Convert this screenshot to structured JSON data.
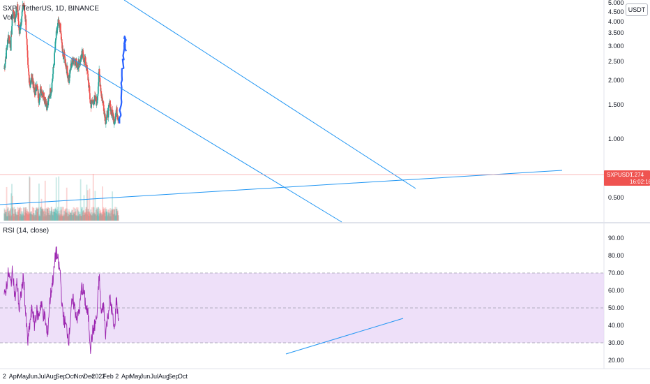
{
  "legend": {
    "title": "SXP / TetherUS, 1D, BINANCE",
    "volume": "Vol",
    "rsi": "RSI (14, close)"
  },
  "currency_button": "USDT",
  "price_badge": {
    "symbol": "SXPUSDT",
    "price": "1.274",
    "countdown": "16:02:16"
  },
  "colors": {
    "up": "#26a69a",
    "down": "#ef5350",
    "projection": "#2962ff",
    "trendline": "#2196f3",
    "rsi_line": "#9c27b0",
    "rsi_band": "#e8d5f7",
    "badge": "#ef5350"
  },
  "chart_data": [
    {
      "type": "candlestick",
      "title": "SXP / TetherUS, 1D, BINANCE",
      "y_axis": {
        "scale": "log",
        "range": [
          0.42,
          5.0
        ],
        "tick_labels": [
          "5.000",
          "4.500",
          "4.000",
          "3.500",
          "3.000",
          "2.500",
          "2.000",
          "1.500",
          "1.000",
          "0.500"
        ]
      },
      "x_axis": {
        "tick_labels": [
          "2",
          "Apr",
          "May",
          "Jun",
          "Jul",
          "Aug",
          "Sep",
          "Oct",
          "Nov",
          "Dec",
          "2022",
          "Feb",
          "2",
          "Apr",
          "May",
          "Jun",
          "Jul",
          "Aug",
          "Sep",
          "Oct"
        ]
      },
      "series": [
        {
          "name": "SXPUSDT",
          "kind": "price_path_estimate",
          "points": [
            [
              "2021-03-01",
              2.3
            ],
            [
              "2021-03-08",
              2.8
            ],
            [
              "2021-03-15",
              3.4
            ],
            [
              "2021-03-22",
              3.0
            ],
            [
              "2021-03-29",
              4.6
            ],
            [
              "2021-04-05",
              4.1
            ],
            [
              "2021-04-12",
              4.9
            ],
            [
              "2021-04-19",
              3.5
            ],
            [
              "2021-04-26",
              4.2
            ],
            [
              "2021-05-03",
              5.0
            ],
            [
              "2021-05-10",
              4.0
            ],
            [
              "2021-05-17",
              2.3
            ],
            [
              "2021-05-24",
              1.9
            ],
            [
              "2021-05-31",
              2.1
            ],
            [
              "2021-06-07",
              1.7
            ],
            [
              "2021-06-14",
              1.9
            ],
            [
              "2021-06-21",
              1.6
            ],
            [
              "2021-06-28",
              1.8
            ],
            [
              "2021-07-05",
              1.7
            ],
            [
              "2021-07-12",
              1.6
            ],
            [
              "2021-07-19",
              1.45
            ],
            [
              "2021-07-26",
              1.7
            ],
            [
              "2021-08-02",
              1.85
            ],
            [
              "2021-08-09",
              2.4
            ],
            [
              "2021-08-16",
              3.3
            ],
            [
              "2021-08-23",
              3.9
            ],
            [
              "2021-08-30",
              3.7
            ],
            [
              "2021-09-06",
              2.8
            ],
            [
              "2021-09-13",
              2.6
            ],
            [
              "2021-09-20",
              2.3
            ],
            [
              "2021-09-27",
              2.0
            ],
            [
              "2021-10-04",
              2.4
            ],
            [
              "2021-10-11",
              2.6
            ],
            [
              "2021-10-18",
              2.5
            ],
            [
              "2021-10-25",
              2.4
            ],
            [
              "2021-11-01",
              2.5
            ],
            [
              "2021-11-08",
              2.7
            ],
            [
              "2021-11-15",
              2.6
            ],
            [
              "2021-11-22",
              2.4
            ],
            [
              "2021-11-29",
              2.0
            ],
            [
              "2021-12-06",
              1.5
            ],
            [
              "2021-12-13",
              1.55
            ],
            [
              "2021-12-20",
              1.6
            ],
            [
              "2021-12-27",
              1.55
            ],
            [
              "2022-01-03",
              2.2
            ],
            [
              "2022-01-10",
              1.7
            ],
            [
              "2022-01-17",
              1.5
            ],
            [
              "2022-01-24",
              1.25
            ],
            [
              "2022-01-31",
              1.35
            ],
            [
              "2022-02-07",
              1.5
            ],
            [
              "2022-02-14",
              1.35
            ],
            [
              "2022-02-21",
              1.25
            ],
            [
              "2022-02-28",
              1.4
            ],
            [
              "2022-03-07",
              1.274
            ]
          ]
        },
        {
          "name": "Projection",
          "kind": "hand_drawn_path",
          "points": [
            [
              "2022-03-10",
              1.2
            ],
            [
              "2022-03-14",
              1.5
            ],
            [
              "2022-03-18",
              1.9
            ],
            [
              "2022-03-22",
              2.5
            ],
            [
              "2022-03-25",
              3.1
            ],
            [
              "2022-03-28",
              3.35
            ],
            [
              "2022-03-31",
              2.8
            ]
          ]
        },
        {
          "name": "Volume",
          "kind": "histogram_relative"
        }
      ],
      "annotations": [
        "upper descending channel line",
        "lower descending channel line",
        "ascending support line"
      ]
    },
    {
      "type": "line",
      "title": "RSI (14, close)",
      "y_axis": {
        "range": [
          18,
          94
        ],
        "tick_labels": [
          "90.00",
          "80.00",
          "70.00",
          "60.00",
          "50.00",
          "40.00",
          "30.00",
          "20.00"
        ]
      },
      "band": [
        30,
        70
      ],
      "series": [
        {
          "name": "RSI",
          "points": [
            [
              "2021-03-01",
              55
            ],
            [
              "2021-03-15",
              70
            ],
            [
              "2021-03-22",
              64
            ],
            [
              "2021-03-29",
              72
            ],
            [
              "2021-04-05",
              55
            ],
            [
              "2021-04-12",
              65
            ],
            [
              "2021-04-19",
              48
            ],
            [
              "2021-04-26",
              60
            ],
            [
              "2021-05-03",
              68
            ],
            [
              "2021-05-10",
              45
            ],
            [
              "2021-05-17",
              30
            ],
            [
              "2021-05-24",
              42
            ],
            [
              "2021-05-31",
              50
            ],
            [
              "2021-06-07",
              40
            ],
            [
              "2021-06-14",
              48
            ],
            [
              "2021-06-21",
              45
            ],
            [
              "2021-06-28",
              53
            ],
            [
              "2021-07-05",
              47
            ],
            [
              "2021-07-12",
              44
            ],
            [
              "2021-07-19",
              33
            ],
            [
              "2021-07-26",
              52
            ],
            [
              "2021-08-02",
              62
            ],
            [
              "2021-08-09",
              70
            ],
            [
              "2021-08-16",
              83
            ],
            [
              "2021-08-23",
              76
            ],
            [
              "2021-08-30",
              70
            ],
            [
              "2021-09-06",
              48
            ],
            [
              "2021-09-13",
              42
            ],
            [
              "2021-09-20",
              38
            ],
            [
              "2021-09-27",
              32
            ],
            [
              "2021-10-04",
              50
            ],
            [
              "2021-10-11",
              54
            ],
            [
              "2021-10-18",
              48
            ],
            [
              "2021-10-25",
              44
            ],
            [
              "2021-11-01",
              50
            ],
            [
              "2021-11-08",
              62
            ],
            [
              "2021-11-15",
              58
            ],
            [
              "2021-11-22",
              50
            ],
            [
              "2021-11-29",
              45
            ],
            [
              "2021-12-06",
              28
            ],
            [
              "2021-12-13",
              36
            ],
            [
              "2021-12-20",
              40
            ],
            [
              "2021-12-27",
              45
            ],
            [
              "2022-01-03",
              69
            ],
            [
              "2022-01-10",
              46
            ],
            [
              "2022-01-17",
              52
            ],
            [
              "2022-01-24",
              36
            ],
            [
              "2022-01-31",
              45
            ],
            [
              "2022-02-07",
              55
            ],
            [
              "2022-02-14",
              48
            ],
            [
              "2022-02-21",
              36
            ],
            [
              "2022-02-28",
              55
            ],
            [
              "2022-03-07",
              44
            ]
          ]
        }
      ],
      "annotations": [
        "ascending RSI support line"
      ]
    }
  ]
}
